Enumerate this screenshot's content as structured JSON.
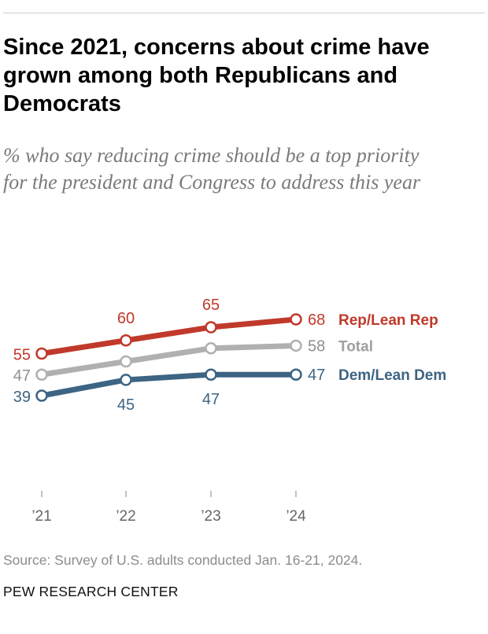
{
  "title": "Since 2021, concerns about crime have grown among both Republicans and Democrats",
  "subtitle": "% who say reducing crime should be a top priority for the president and Congress to address this year",
  "source": "Source: Survey of U.S. adults conducted Jan. 16-21, 2024.",
  "organization": "PEW RESEARCH CENTER",
  "chart_data": {
    "type": "line",
    "x": [
      "’21",
      "’22",
      "’23",
      "’24"
    ],
    "series": [
      {
        "name": "Rep/Lean Rep",
        "values": [
          55,
          60,
          65,
          68
        ],
        "color": "#c0392b"
      },
      {
        "name": "Total",
        "values": [
          47,
          52,
          57,
          58
        ],
        "color": "#b0b0b0"
      },
      {
        "name": "Dem/Lean Dem",
        "values": [
          39,
          45,
          47,
          47
        ],
        "color": "#3d6483"
      }
    ],
    "labeled_points": [
      {
        "series": "Rep/Lean Rep",
        "labels": [
          "55",
          "60",
          "65",
          "68"
        ]
      },
      {
        "series": "Total",
        "labels": [
          "47",
          "",
          "",
          "58"
        ]
      },
      {
        "series": "Dem/Lean Dem",
        "labels": [
          "39",
          "45",
          "47",
          "47"
        ]
      }
    ],
    "legend": "direct-labels-right",
    "grid": false
  }
}
